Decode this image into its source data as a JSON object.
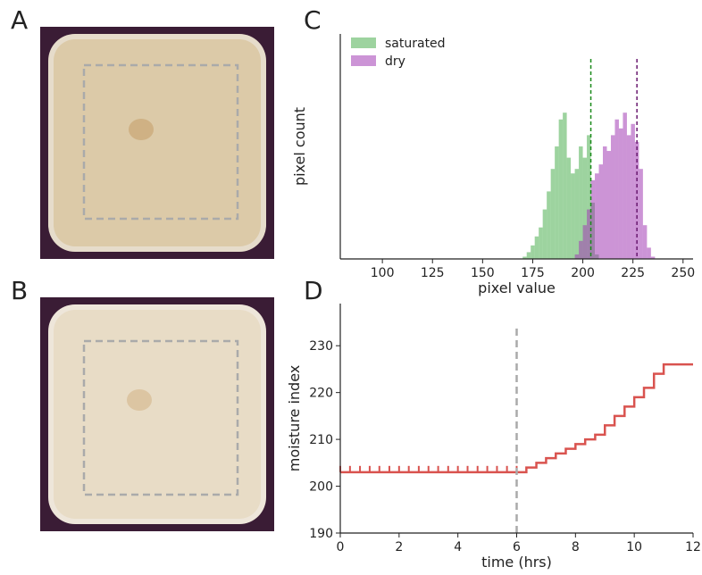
{
  "panels": [
    "A",
    "B",
    "C",
    "D"
  ],
  "chart_data": [
    {
      "type": "histogram",
      "xlabel": "pixel value",
      "ylabel": "pixel count",
      "xlim": [
        79,
        255
      ],
      "xticks": [
        100,
        125,
        150,
        175,
        200,
        225,
        250
      ],
      "ylim": [
        0,
        100
      ],
      "legend": "upper left",
      "bins": [
        168,
        170,
        172,
        174,
        176,
        178,
        180,
        182,
        184,
        186,
        188,
        190,
        192,
        194,
        196,
        198,
        200,
        202,
        204,
        206,
        208,
        210,
        212,
        214,
        216,
        218,
        220,
        222,
        224,
        226,
        228,
        230,
        232,
        234,
        236
      ],
      "series": [
        {
          "name": "saturated",
          "color": "#4caf50",
          "values": [
            0,
            1,
            3,
            6,
            10,
            14,
            22,
            30,
            40,
            50,
            62,
            65,
            45,
            38,
            40,
            50,
            45,
            55,
            25,
            2,
            0,
            0,
            0,
            0,
            0,
            0,
            0,
            0,
            0,
            0,
            0,
            0,
            0,
            0
          ]
        },
        {
          "name": "dry",
          "color": "#a33cb5",
          "values": [
            0,
            0,
            0,
            0,
            0,
            0,
            0,
            0,
            0,
            0,
            0,
            0,
            0,
            0,
            2,
            8,
            15,
            22,
            35,
            38,
            42,
            50,
            48,
            55,
            62,
            58,
            65,
            55,
            60,
            52,
            40,
            15,
            5,
            1
          ]
        }
      ],
      "vlines": [
        {
          "x": 204,
          "color": "#1a8a1a"
        },
        {
          "x": 227,
          "color": "#6a1a70"
        }
      ]
    },
    {
      "type": "line",
      "step": true,
      "xlabel": "time (hrs)",
      "ylabel": "moisture index",
      "xlim": [
        0,
        12
      ],
      "xticks": [
        0,
        2,
        4,
        6,
        8,
        10,
        12
      ],
      "ylim": [
        190,
        239
      ],
      "yticks": [
        190,
        200,
        210,
        220,
        230
      ],
      "series": [
        {
          "color": "#d9534f",
          "marker": "|",
          "x": [
            0,
            0.33,
            0.67,
            1,
            1.33,
            1.67,
            2,
            2.33,
            2.67,
            3,
            3.33,
            3.67,
            4,
            4.33,
            4.67,
            5,
            5.33,
            5.67,
            6
          ],
          "values": [
            203,
            203,
            203,
            203,
            203,
            203,
            203,
            203,
            203,
            203,
            203,
            203,
            203,
            203,
            203,
            203,
            203,
            203,
            203
          ]
        },
        {
          "color": "#d9534f",
          "x": [
            6,
            6.33,
            6.67,
            7,
            7.33,
            7.67,
            8,
            8.33,
            8.67,
            9,
            9.33,
            9.67,
            10,
            10.33,
            10.67,
            11,
            11.33,
            11.67,
            12
          ],
          "values": [
            203,
            204,
            205,
            206,
            207,
            208,
            209,
            210,
            211,
            213,
            215,
            217,
            219,
            221,
            224,
            226,
            226,
            226,
            226
          ]
        }
      ],
      "vlines": [
        {
          "x": 6,
          "color": "#aaaaaa"
        }
      ]
    }
  ]
}
